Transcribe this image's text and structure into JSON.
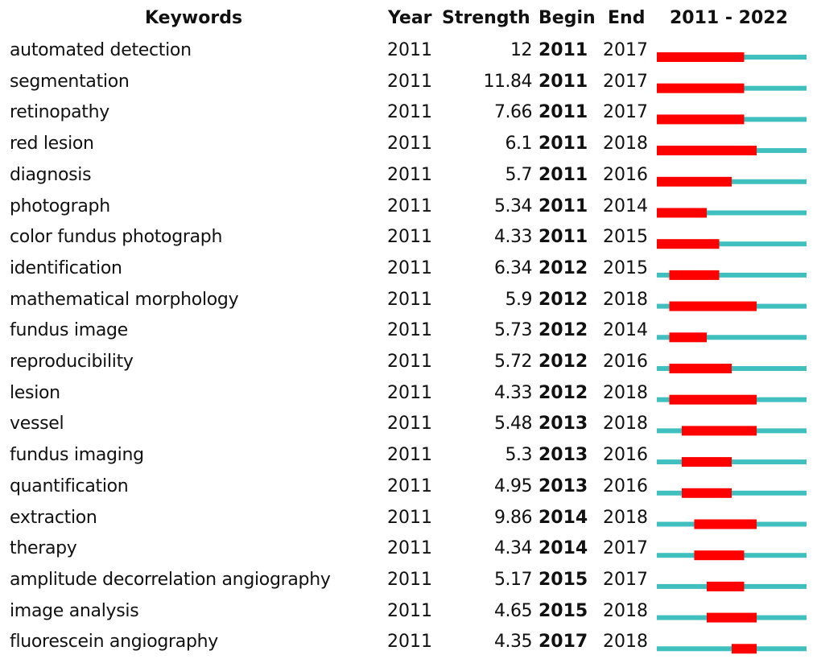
{
  "headers": {
    "keywords": "Keywords",
    "year": "Year",
    "strength": "Strength",
    "begin": "Begin",
    "end": "End",
    "range": "2011 - 2022"
  },
  "colors": {
    "burst": "#ff0000",
    "baseline": "#40bfbf"
  },
  "chart_data": {
    "type": "table",
    "title": "",
    "range_start": 2011,
    "range_end": 2022,
    "rows": [
      {
        "keyword": "automated detection",
        "year": "2011",
        "strength": "12",
        "begin": "2011",
        "end": "2017"
      },
      {
        "keyword": "segmentation",
        "year": "2011",
        "strength": "11.84",
        "begin": "2011",
        "end": "2017"
      },
      {
        "keyword": "retinopathy",
        "year": "2011",
        "strength": "7.66",
        "begin": "2011",
        "end": "2017"
      },
      {
        "keyword": "red lesion",
        "year": "2011",
        "strength": "6.1",
        "begin": "2011",
        "end": "2018"
      },
      {
        "keyword": "diagnosis",
        "year": "2011",
        "strength": "5.7",
        "begin": "2011",
        "end": "2016"
      },
      {
        "keyword": "photograph",
        "year": "2011",
        "strength": "5.34",
        "begin": "2011",
        "end": "2014"
      },
      {
        "keyword": "color fundus photograph",
        "year": "2011",
        "strength": "4.33",
        "begin": "2011",
        "end": "2015"
      },
      {
        "keyword": "identification",
        "year": "2011",
        "strength": "6.34",
        "begin": "2012",
        "end": "2015"
      },
      {
        "keyword": "mathematical morphology",
        "year": "2011",
        "strength": "5.9",
        "begin": "2012",
        "end": "2018"
      },
      {
        "keyword": "fundus image",
        "year": "2011",
        "strength": "5.73",
        "begin": "2012",
        "end": "2014"
      },
      {
        "keyword": "reproducibility",
        "year": "2011",
        "strength": "5.72",
        "begin": "2012",
        "end": "2016"
      },
      {
        "keyword": "lesion",
        "year": "2011",
        "strength": "4.33",
        "begin": "2012",
        "end": "2018"
      },
      {
        "keyword": "vessel",
        "year": "2011",
        "strength": "5.48",
        "begin": "2013",
        "end": "2018"
      },
      {
        "keyword": "fundus imaging",
        "year": "2011",
        "strength": "5.3",
        "begin": "2013",
        "end": "2016"
      },
      {
        "keyword": "quantification",
        "year": "2011",
        "strength": "4.95",
        "begin": "2013",
        "end": "2016"
      },
      {
        "keyword": "extraction",
        "year": "2011",
        "strength": "9.86",
        "begin": "2014",
        "end": "2018"
      },
      {
        "keyword": "therapy",
        "year": "2011",
        "strength": "4.34",
        "begin": "2014",
        "end": "2017"
      },
      {
        "keyword": "amplitude decorrelation angiography",
        "year": "2011",
        "strength": "5.17",
        "begin": "2015",
        "end": "2017"
      },
      {
        "keyword": "image analysis",
        "year": "2011",
        "strength": "4.65",
        "begin": "2015",
        "end": "2018"
      },
      {
        "keyword": "fluorescein angiography",
        "year": "2011",
        "strength": "4.35",
        "begin": "2017",
        "end": "2018"
      }
    ]
  }
}
